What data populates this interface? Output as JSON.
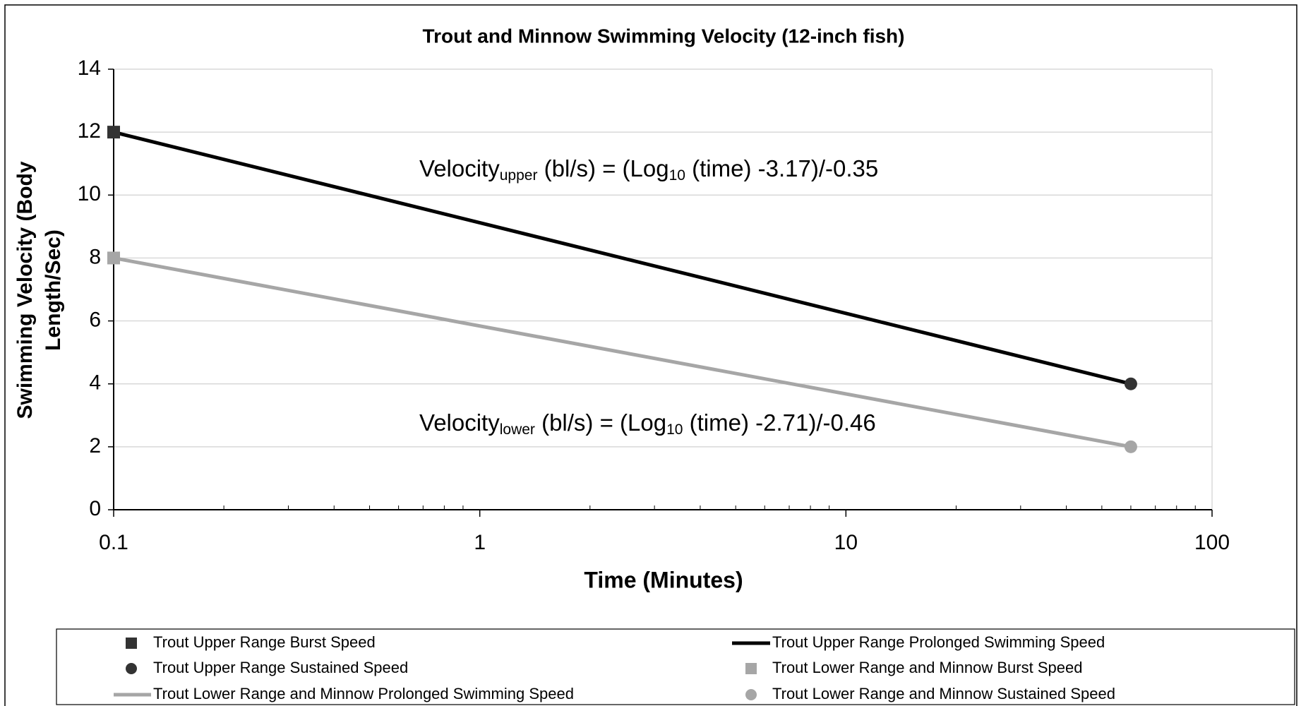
{
  "chart_data": {
    "type": "line",
    "title": "Trout and Minnow Swimming Velocity (12-inch fish)",
    "xlabel": "Time (Minutes)",
    "ylabel": [
      "Swimming Velocity (Body",
      "Length/Sec)"
    ],
    "xscale": "log",
    "xlim": [
      0.1,
      100
    ],
    "xticks": [
      0.1,
      1,
      10,
      100
    ],
    "ylim": [
      0,
      14
    ],
    "yticks": [
      0,
      2,
      4,
      6,
      8,
      10,
      12,
      14
    ],
    "grid": true,
    "legend": "bottom",
    "series": [
      {
        "name": "Trout Upper Range Burst Speed",
        "color": "#333333",
        "marker": "square",
        "x": [
          0.1
        ],
        "values": [
          12
        ]
      },
      {
        "name": "Trout Upper Range Prolonged Swimming Speed",
        "color": "#000000",
        "marker": "line",
        "x": [
          0.1,
          60
        ],
        "values": [
          12,
          4
        ]
      },
      {
        "name": "Trout Upper Range Sustained Speed",
        "color": "#333333",
        "marker": "circle",
        "x": [
          60
        ],
        "values": [
          4
        ]
      },
      {
        "name": "Trout Lower Range and Minnow Burst Speed",
        "color": "#a6a6a6",
        "marker": "square",
        "x": [
          0.1
        ],
        "values": [
          8
        ]
      },
      {
        "name": "Trout Lower Range and Minnow Prolonged Swimming Speed",
        "color": "#a6a6a6",
        "marker": "line",
        "x": [
          0.1,
          60
        ],
        "values": [
          8,
          2
        ]
      },
      {
        "name": "Trout Lower Range and Minnow Sustained Speed",
        "color": "#a6a6a6",
        "marker": "circle",
        "x": [
          60
        ],
        "values": [
          2
        ]
      }
    ],
    "annotations": [
      {
        "parts": [
          "Velocity",
          "upper",
          " (bl/s) = (Log",
          "10",
          " (time) -3.17)/-0.35"
        ]
      },
      {
        "parts": [
          "Velocity",
          "lower",
          " (bl/s) = (Log",
          "10",
          " (time) -2.71)/-0.46"
        ]
      }
    ]
  }
}
